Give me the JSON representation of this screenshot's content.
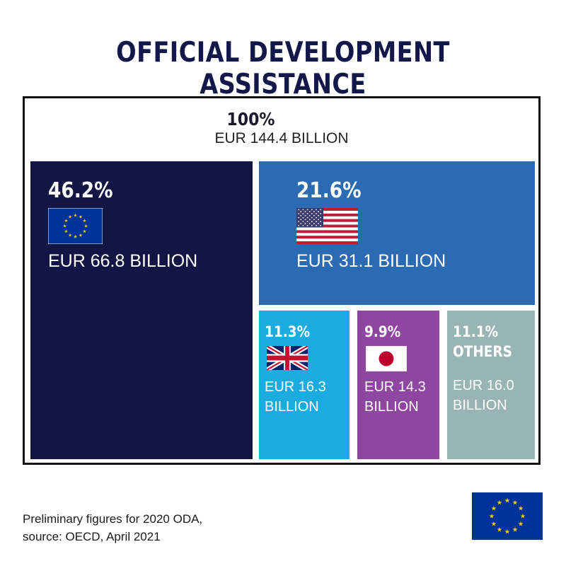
{
  "title": "OFFICIAL DEVELOPMENT ASSISTANCE",
  "total": {
    "pct": "100%",
    "amount": "EUR 144.4 BILLION"
  },
  "colors": {
    "title": "#13174a",
    "eu": "#131545",
    "us": "#2a6bb3",
    "uk": "#1aace0",
    "japan": "#8f46a0",
    "others": "#99b4b5",
    "flag_blue": "#003399",
    "flag_gold": "#ffcc00"
  },
  "chart_data": {
    "type": "treemap",
    "title": "OFFICIAL DEVELOPMENT ASSISTANCE",
    "total": {
      "percent": 100,
      "value_eur_billion": 144.4
    },
    "items": [
      {
        "key": "eu",
        "label": "EU",
        "percent": 46.2,
        "value_eur_billion": 66.8,
        "icon": "eu-flag-icon"
      },
      {
        "key": "us",
        "label": "USA",
        "percent": 21.6,
        "value_eur_billion": 31.1,
        "icon": "us-flag-icon"
      },
      {
        "key": "uk",
        "label": "UK",
        "percent": 11.3,
        "value_eur_billion": 16.3,
        "icon": "uk-flag-icon"
      },
      {
        "key": "japan",
        "label": "Japan",
        "percent": 9.9,
        "value_eur_billion": 14.3,
        "icon": "japan-flag-icon"
      },
      {
        "key": "others",
        "label": "OTHERS",
        "percent": 11.1,
        "value_eur_billion": 16.0
      }
    ]
  },
  "cells": {
    "eu": {
      "pct": "46.2%",
      "amount": "EUR 66.8 BILLION"
    },
    "us": {
      "pct": "21.6%",
      "amount": "EUR 31.1 BILLION"
    },
    "uk": {
      "pct": "11.3%",
      "amount_line1": "EUR 16.3",
      "amount_line2": "BILLION"
    },
    "japan": {
      "pct": "9.9%",
      "amount_line1": "EUR 14.3",
      "amount_line2": "BILLION"
    },
    "others": {
      "pct": "11.1%",
      "name": "OTHERS",
      "amount_line1": "EUR 16.0",
      "amount_line2": "BILLION"
    }
  },
  "note": {
    "line1": "Preliminary figures for 2020 ODA,",
    "line2": "source: OECD, April 2021"
  }
}
